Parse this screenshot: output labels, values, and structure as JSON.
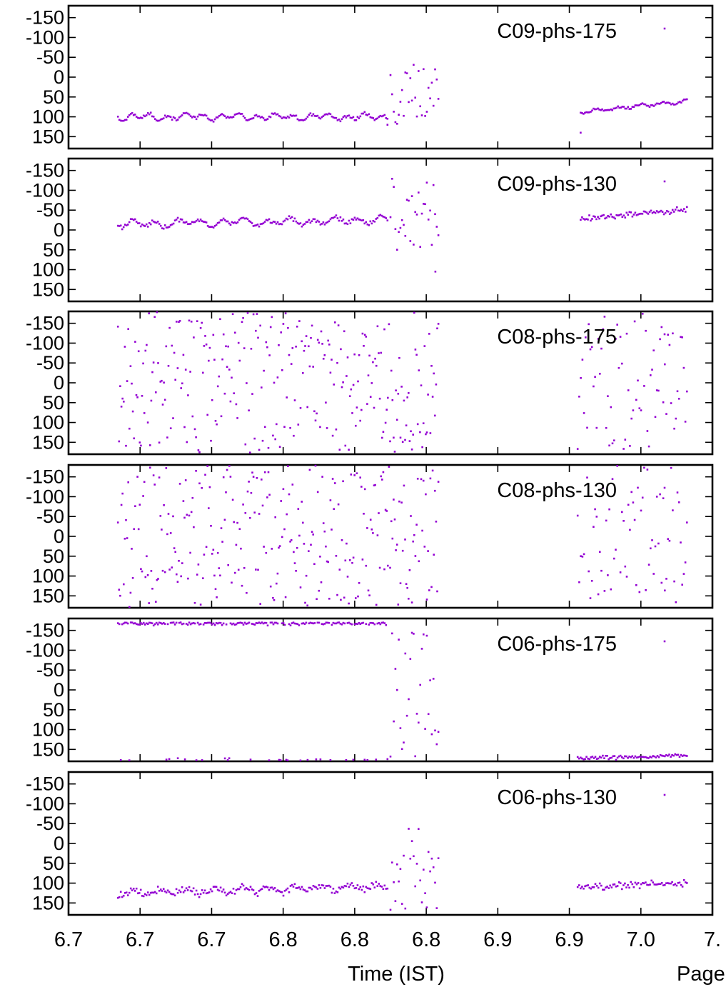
{
  "page_label": "Page",
  "chart_data": {
    "type": "scatter",
    "xlabel": "Time (IST)",
    "x_tick_labels": [
      "6.7",
      "6.7",
      "6.7",
      "6.8",
      "6.8",
      "6.8",
      "6.9",
      "6.9",
      "7.0",
      "7."
    ],
    "xlim": [
      6.62,
      7.05
    ],
    "ylim": [
      -180,
      180
    ],
    "y_reversed": true,
    "y_tick_labels": [
      "-150",
      "-100",
      "-50",
      "0",
      "50",
      "100",
      "150"
    ],
    "grid": false,
    "legend_position": "top-right",
    "marker_color": "#9400d3",
    "panels": [
      {
        "name": "C09-phs-175",
        "segments": [
          {
            "x_start": 6.653,
            "x_end": 6.833,
            "n": 190,
            "pattern": "smooth",
            "base": 100,
            "noise": 4,
            "waves": [
              [
                6,
                0.012,
                0
              ],
              [
                4,
                0.03,
                1.3
              ]
            ]
          },
          {
            "x_start": 6.835,
            "x_end": 6.867,
            "n": 30,
            "pattern": "scatter",
            "base": 40,
            "noise": 80
          },
          {
            "x_start": 6.962,
            "x_end": 7.033,
            "n": 75,
            "pattern": "trend",
            "start": 88,
            "end": 60,
            "noise": 3,
            "waves": [
              [
                3,
                0.015,
                0.4
              ]
            ]
          }
        ],
        "extra_points": [
          [
            6.962,
            140
          ],
          [
            6.833,
            120
          ]
        ]
      },
      {
        "name": "C09-phs-130",
        "segments": [
          {
            "x_start": 6.653,
            "x_end": 6.833,
            "n": 190,
            "pattern": "trend",
            "start": -14,
            "end": -25,
            "noise": 5,
            "waves": [
              [
                7,
                0.015,
                0.5
              ],
              [
                4,
                0.033,
                2.1
              ]
            ]
          },
          {
            "x_start": 6.835,
            "x_end": 6.867,
            "n": 30,
            "pattern": "scatter",
            "base": -40,
            "noise": 90
          },
          {
            "x_start": 6.962,
            "x_end": 7.033,
            "n": 75,
            "pattern": "trend",
            "start": -28,
            "end": -52,
            "noise": 6
          }
        ],
        "extra_points": [
          [
            6.865,
            105
          ]
        ]
      },
      {
        "name": "C08-phs-175",
        "segments": [
          {
            "x_start": 6.653,
            "x_end": 6.867,
            "n": 280,
            "pattern": "uniform"
          },
          {
            "x_start": 6.96,
            "x_end": 7.033,
            "n": 70,
            "pattern": "uniform"
          }
        ]
      },
      {
        "name": "C08-phs-130",
        "segments": [
          {
            "x_start": 6.653,
            "x_end": 6.867,
            "n": 280,
            "pattern": "uniform"
          },
          {
            "x_start": 6.96,
            "x_end": 7.033,
            "n": 70,
            "pattern": "uniform"
          }
        ]
      },
      {
        "name": "C06-phs-175",
        "segments": [
          {
            "x_start": 6.653,
            "x_end": 6.833,
            "n": 190,
            "pattern": "wrap",
            "base": -170,
            "noise": 6,
            "wrap_fraction": 0.12
          },
          {
            "x_start": 6.835,
            "x_end": 6.867,
            "n": 30,
            "pattern": "scatter",
            "base": 0,
            "noise": 170
          },
          {
            "x_start": 6.96,
            "x_end": 7.033,
            "n": 75,
            "pattern": "trend",
            "start": 173,
            "end": 165,
            "noise": 4
          }
        ]
      },
      {
        "name": "C06-phs-130",
        "segments": [
          {
            "x_start": 6.653,
            "x_end": 6.833,
            "n": 190,
            "pattern": "trend",
            "start": 125,
            "end": 108,
            "noise": 8,
            "waves": [
              [
                6,
                0.018,
                1.1
              ]
            ]
          },
          {
            "x_start": 6.835,
            "x_end": 6.867,
            "n": 30,
            "pattern": "scatter",
            "base": 70,
            "noise": 110
          },
          {
            "x_start": 6.96,
            "x_end": 7.033,
            "n": 75,
            "pattern": "trend",
            "start": 110,
            "end": 100,
            "noise": 7
          }
        ]
      }
    ]
  }
}
